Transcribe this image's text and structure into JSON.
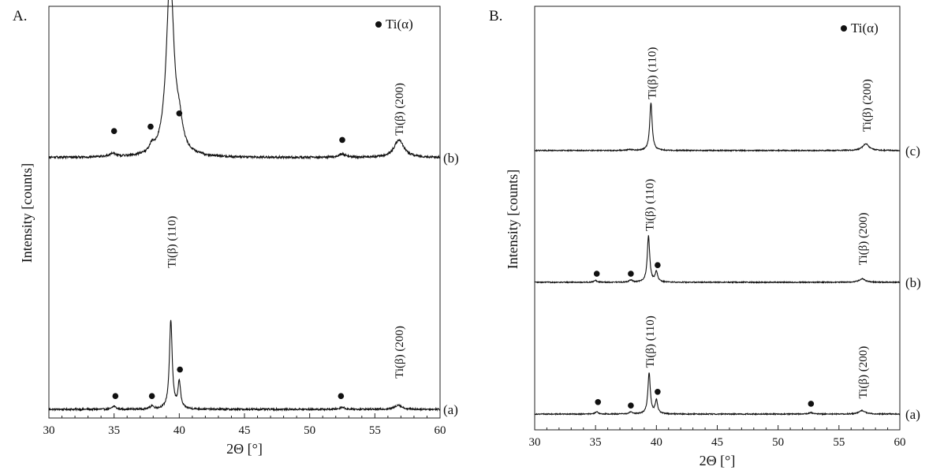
{
  "chart_data": [
    {
      "panel": "A.",
      "type": "line",
      "xlabel": "2Θ [°]",
      "ylabel": "Intensity [counts]",
      "xlim": [
        30,
        60
      ],
      "x_ticks": [
        "30",
        "35",
        "40",
        "45",
        "50",
        "55",
        "60"
      ],
      "legend": {
        "marker": "●",
        "label": "Ti(α)",
        "placement": "top-right"
      },
      "series": [
        {
          "name": "(a)",
          "baseline": 0,
          "noise": 0.4,
          "peaks": [
            [
              35.0,
              1.5,
              0.15
            ],
            [
              37.9,
              1.5,
              0.15
            ],
            [
              39.35,
              40,
              0.13
            ],
            [
              40.0,
              12,
              0.12
            ],
            [
              52.5,
              1.0,
              0.2
            ],
            [
              56.8,
              2.0,
              0.3
            ]
          ],
          "alpha_markers": [
            [
              35.1,
              6
            ],
            [
              37.9,
              6
            ],
            [
              40.05,
              18
            ],
            [
              52.4,
              6
            ]
          ],
          "peak_labels": [
            {
              "text": "Ti(β)  (110)",
              "x": 39.35,
              "y": 64
            },
            {
              "text": "Ti(β)  (200)",
              "x": 56.8,
              "y": 14
            }
          ]
        },
        {
          "name": "(b)",
          "baseline": 114,
          "noise": 0.5,
          "peaks": [
            [
              34.9,
              1.6,
              0.3
            ],
            [
              37.9,
              2.8,
              0.2
            ],
            [
              39.3,
              82,
              0.35
            ],
            [
              40.0,
              10,
              0.3
            ],
            [
              52.5,
              1.5,
              0.3
            ],
            [
              56.85,
              8.0,
              0.45
            ]
          ],
          "alpha_markers": [
            [
              35.0,
              126
            ],
            [
              37.8,
              128
            ],
            [
              40.0,
              134
            ],
            [
              52.5,
              122
            ]
          ],
          "peak_labels": [
            {
              "text": "Ti(β)  (110)",
              "x": 39.3,
              "y": 204
            },
            {
              "text": "Ti(β)  (200)",
              "x": 56.8,
              "y": 124
            }
          ]
        }
      ]
    },
    {
      "panel": "B.",
      "type": "line",
      "xlabel": "2Θ [°]",
      "ylabel": "Intensity [counts]",
      "xlim": [
        30,
        60
      ],
      "x_ticks": [
        "30",
        "35",
        "40",
        "45",
        "50",
        "55",
        "60"
      ],
      "legend": {
        "marker": "●",
        "label": "Ti(α)",
        "placement": "top-right"
      },
      "series": [
        {
          "name": "(a)",
          "baseline": 0,
          "noise": 0.3,
          "peaks": [
            [
              35.1,
              1.2,
              0.15
            ],
            [
              37.9,
              1.2,
              0.15
            ],
            [
              39.4,
              24,
              0.12
            ],
            [
              40.0,
              8,
              0.12
            ],
            [
              52.7,
              0.8,
              0.2
            ],
            [
              56.9,
              2.0,
              0.3
            ]
          ],
          "alpha_markers": [
            [
              35.2,
              7
            ],
            [
              37.9,
              5
            ],
            [
              40.1,
              13
            ],
            [
              52.7,
              6
            ]
          ],
          "peak_labels": [
            {
              "text": "Ti(β)  (110)",
              "x": 39.4,
              "y": 27
            },
            {
              "text": "Ti(β)  (200)",
              "x": 56.9,
              "y": 9
            }
          ]
        },
        {
          "name": "(b)",
          "baseline": 77,
          "noise": 0.3,
          "peaks": [
            [
              35.0,
              1.0,
              0.15
            ],
            [
              37.9,
              1.2,
              0.15
            ],
            [
              39.35,
              27,
              0.12
            ],
            [
              40.0,
              6,
              0.12
            ],
            [
              56.9,
              2.0,
              0.3
            ]
          ],
          "alpha_markers": [
            [
              35.1,
              82
            ],
            [
              37.9,
              82
            ],
            [
              40.1,
              87
            ]
          ],
          "peak_labels": [
            {
              "text": "Ti(β)  (110)",
              "x": 39.35,
              "y": 107
            },
            {
              "text": "Ti(β)  (200)",
              "x": 56.9,
              "y": 87
            }
          ]
        },
        {
          "name": "(c)",
          "baseline": 154,
          "noise": 0.3,
          "peaks": [
            [
              37.8,
              0.6,
              0.2
            ],
            [
              39.55,
              28,
              0.12
            ],
            [
              57.2,
              4.0,
              0.3
            ]
          ],
          "alpha_markers": [],
          "peak_labels": [
            {
              "text": "Ti(β)  (110)",
              "x": 39.55,
              "y": 184
            },
            {
              "text": "Ti(β)  (200)",
              "x": 57.2,
              "y": 165
            }
          ]
        }
      ]
    }
  ]
}
